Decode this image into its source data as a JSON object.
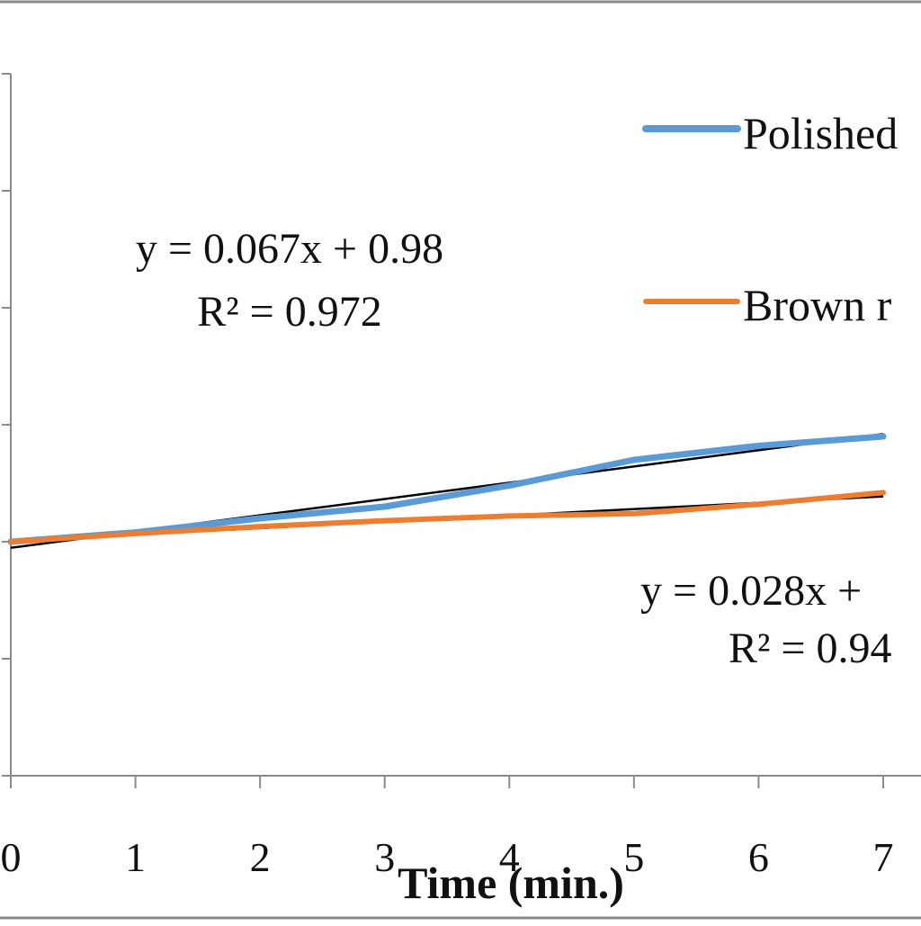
{
  "chart_data": {
    "type": "line",
    "xlabel": "Time (min.)",
    "x": [
      0,
      1,
      2,
      3,
      4,
      5,
      6,
      7
    ],
    "xlim": [
      0,
      7
    ],
    "ylim": [
      -2,
      4
    ],
    "grid": false,
    "legend_position": "top-right",
    "series": [
      {
        "name": "Polished",
        "color": "#5B9BD5",
        "values": [
          0,
          0.08,
          0.2,
          0.3,
          0.48,
          0.7,
          0.82,
          0.9
        ]
      },
      {
        "name": "Brown r",
        "color": "#ED7D31",
        "values": [
          0,
          0.07,
          0.13,
          0.18,
          0.22,
          0.24,
          0.32,
          0.42
        ]
      }
    ],
    "trendlines": [
      {
        "series": "Polished",
        "color": "#000000",
        "slope": 0.067,
        "intercept": 0.98
      },
      {
        "series": "Brown r",
        "color": "#000000",
        "slope": 0.028,
        "intercept": null
      }
    ],
    "annotations": [
      {
        "line1": "y = 0.067x + 0.98",
        "line2": "R² = 0.972"
      },
      {
        "line1": "y = 0.028x +",
        "line2": "R² = 0.94"
      }
    ]
  }
}
